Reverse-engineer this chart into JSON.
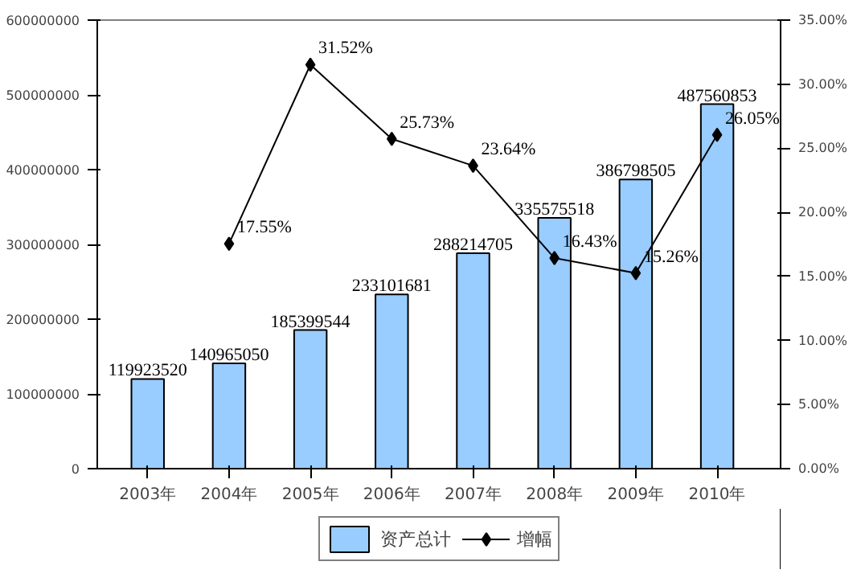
{
  "chart_data": {
    "type": "bar",
    "categories": [
      "2003年",
      "2004年",
      "2005年",
      "2006年",
      "2007年",
      "2008年",
      "2009年",
      "2010年"
    ],
    "series": [
      {
        "name": "资产总计",
        "color": "#99ccff",
        "values": [
          119923520,
          140965050,
          185399544,
          233101681,
          288214705,
          335575518,
          386798505,
          487560853
        ],
        "value_labels": [
          "119923520",
          "140965050",
          "185399544",
          "233101681",
          "288214705",
          "335575518",
          "386798505",
          "487560853"
        ]
      },
      {
        "name": "增幅",
        "type": "line",
        "axis": "y2",
        "color": "#000000",
        "marker": "diamond",
        "values": [
          null,
          17.55,
          31.52,
          25.73,
          23.64,
          16.43,
          15.26,
          26.05
        ],
        "value_labels": [
          null,
          "17.55%",
          "31.52%",
          "25.73%",
          "23.64%",
          "16.43%",
          "15.26%",
          "26.05%"
        ]
      }
    ],
    "ylim": [
      0,
      600000000
    ],
    "yticks": [
      0,
      100000000,
      200000000,
      300000000,
      400000000,
      500000000,
      600000000
    ],
    "y2lim": [
      0,
      35
    ],
    "y2ticks": [
      {
        "value": 0,
        "label": "0.00%"
      },
      {
        "value": 5,
        "label": "5.00%"
      },
      {
        "value": 10,
        "label": "10.00%"
      },
      {
        "value": 15,
        "label": "15.00%"
      },
      {
        "value": 20,
        "label": "20.00%"
      },
      {
        "value": 25,
        "label": "25.00%"
      },
      {
        "value": 30,
        "label": "30.00%"
      },
      {
        "value": 35,
        "label": "35.00%"
      }
    ],
    "grid": false,
    "legend": "bottom"
  }
}
